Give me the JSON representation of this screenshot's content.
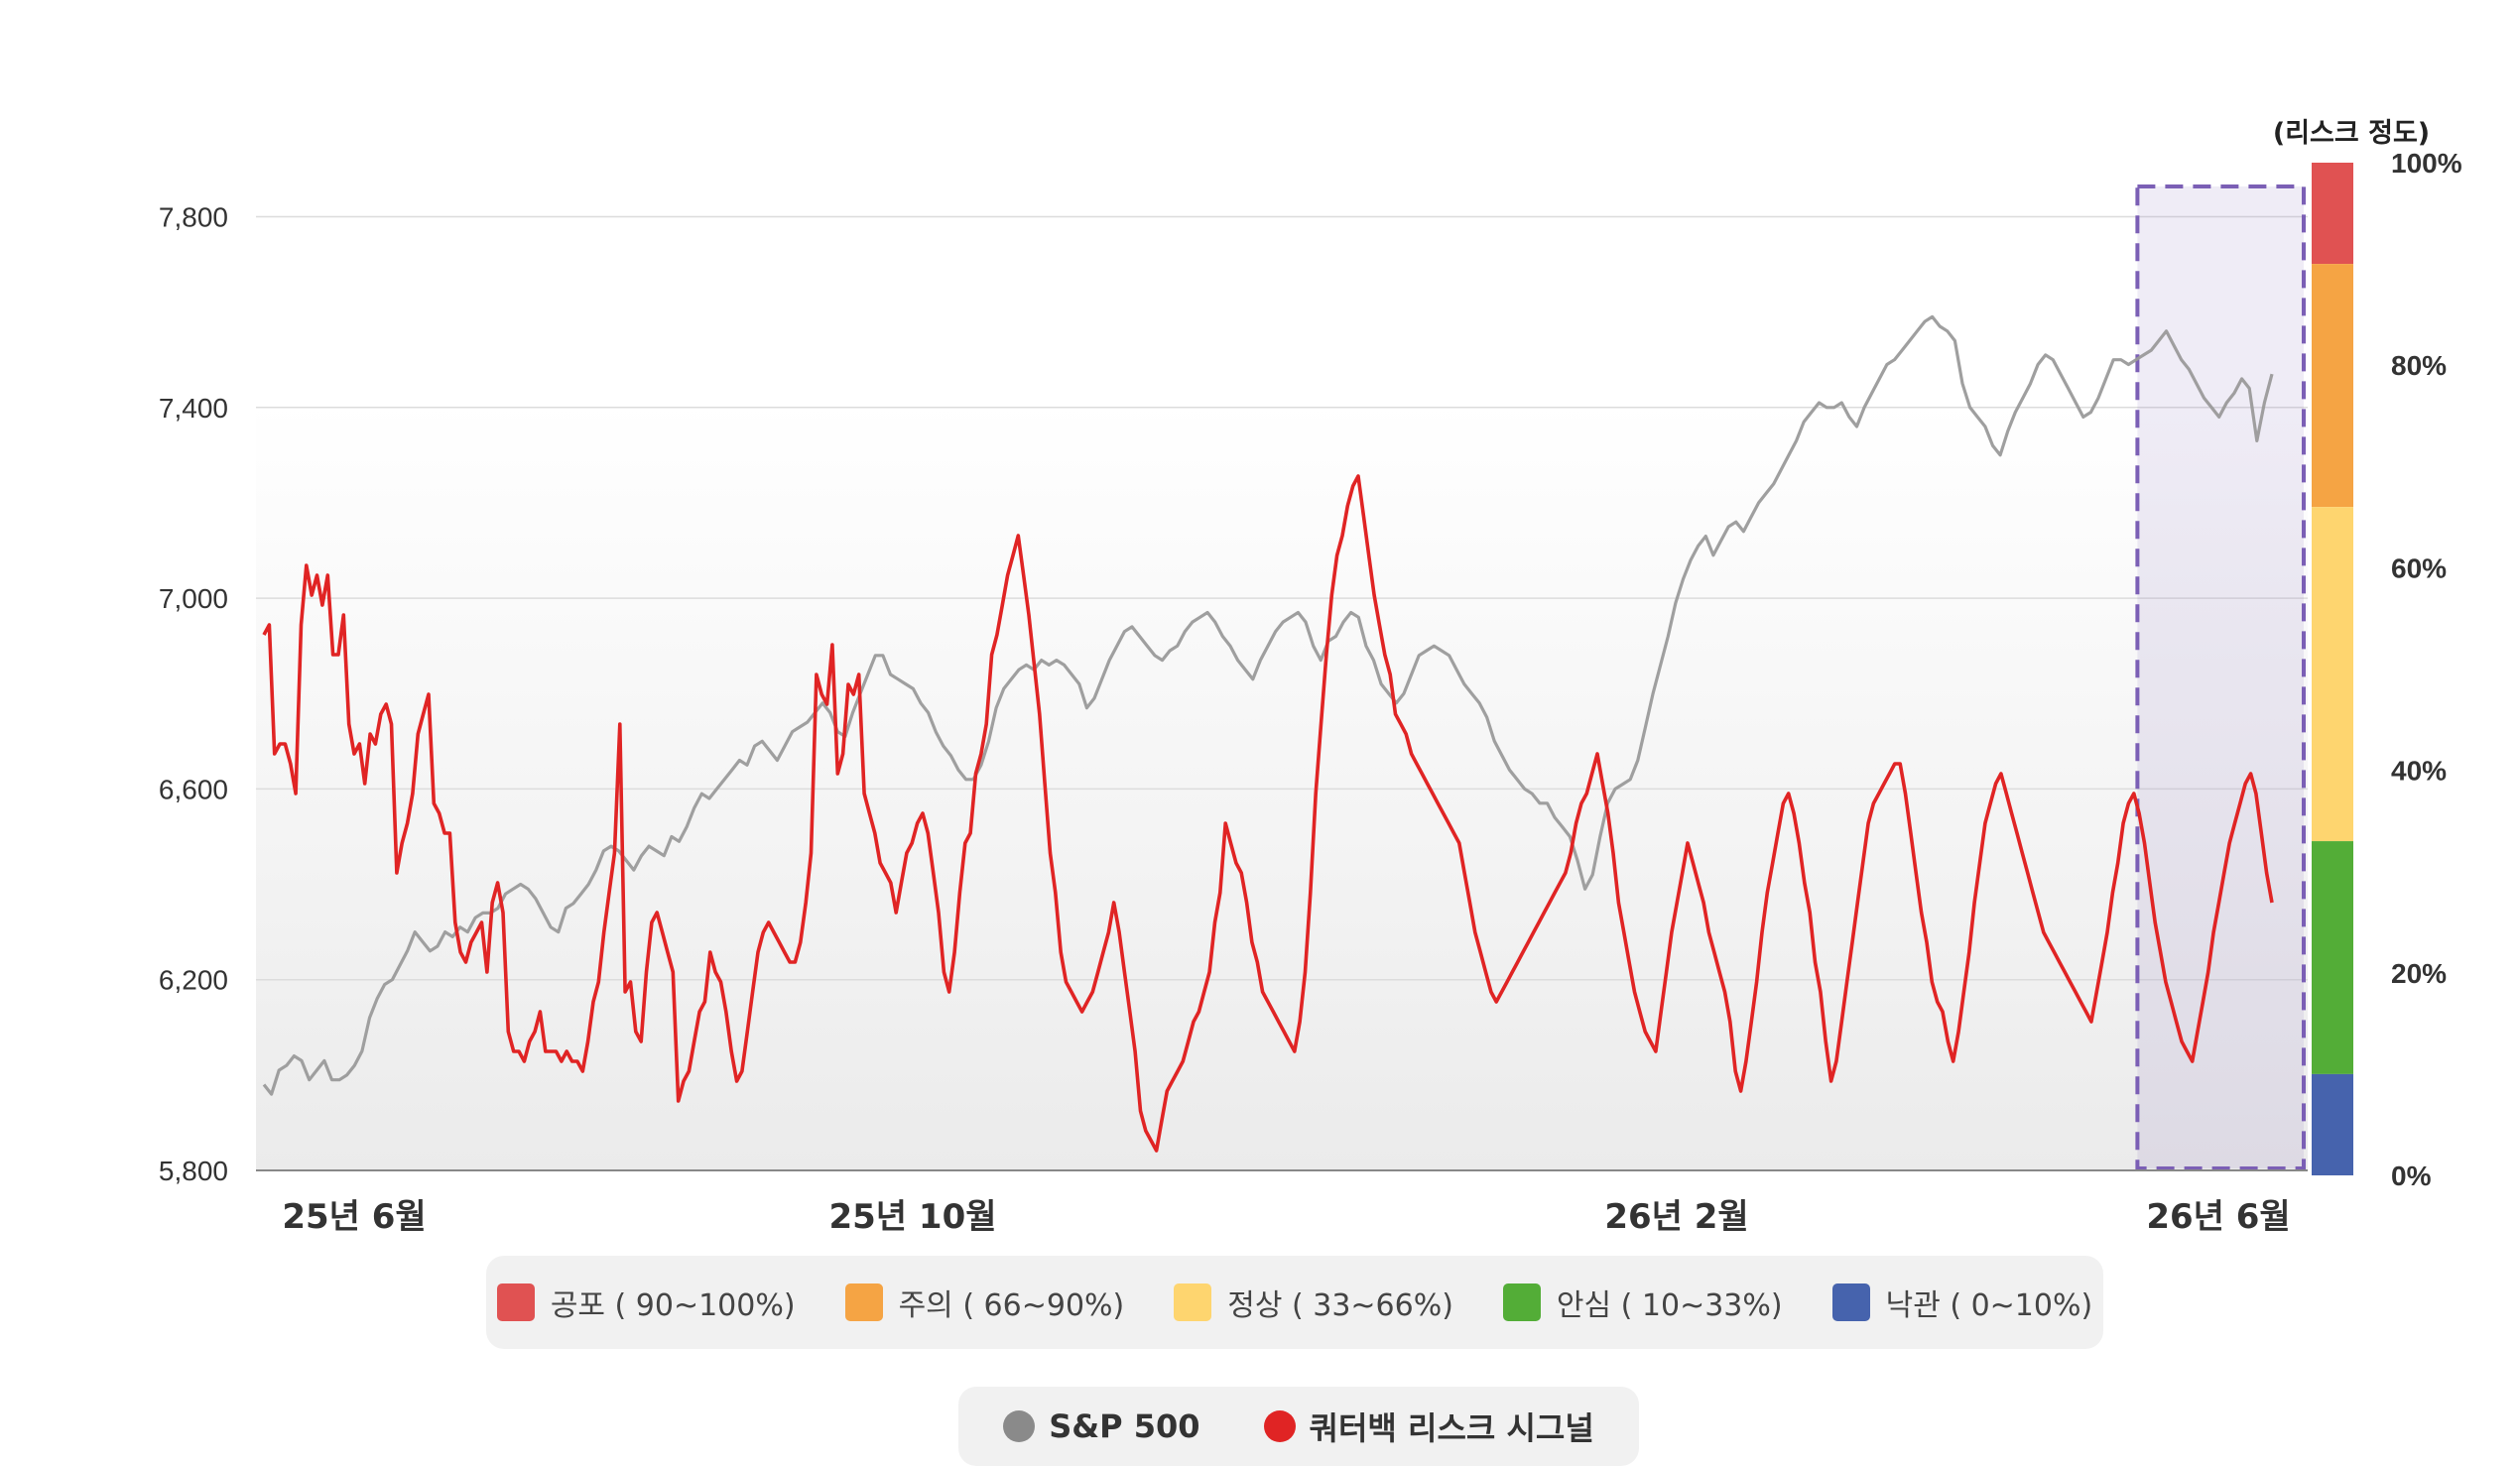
{
  "chart_data": {
    "type": "line",
    "x_ticks": [
      "25년  6월",
      "25년  10월",
      "26년 2월",
      "26년 6월"
    ],
    "y_left": {
      "ticks": [
        "7,800",
        "7,400",
        "7,000",
        "6,600",
        "6,200",
        "5,800"
      ],
      "range": [
        5800,
        7880
      ]
    },
    "y_right": {
      "title": "(리스크 정도)",
      "ticks": [
        "100%",
        "80%",
        "60%",
        "40%",
        "20%",
        "0%"
      ],
      "range": [
        0,
        100
      ]
    },
    "risk_scale": [
      {
        "label": "공포 ( 90~100%)",
        "from": 90,
        "to": 100,
        "color": "#e05252"
      },
      {
        "label": "주의 ( 66~90%)",
        "from": 66,
        "to": 90,
        "color": "#f5a444"
      },
      {
        "label": "정상 ( 33~66%)",
        "from": 33,
        "to": 66,
        "color": "#fed56f"
      },
      {
        "label": "안심 ( 10~33%)",
        "from": 10,
        "to": 33,
        "color": "#53ad37"
      },
      {
        "label": "낙관 ( 0~10%)",
        "from": 0,
        "to": 10,
        "color": "#4663ad"
      }
    ],
    "highlight": {
      "label": "26년 6월 구간",
      "color": "#7b5fb5"
    },
    "series": [
      {
        "name": "S&P 500",
        "color": "#999999",
        "values": [
          5980,
          5960,
          6010,
          6020,
          6040,
          6030,
          5990,
          6010,
          6030,
          5990,
          5990,
          6000,
          6020,
          6050,
          6120,
          6160,
          6190,
          6200,
          6230,
          6260,
          6300,
          6280,
          6260,
          6270,
          6300,
          6290,
          6310,
          6300,
          6330,
          6340,
          6340,
          6350,
          6380,
          6390,
          6400,
          6390,
          6370,
          6340,
          6310,
          6300,
          6350,
          6360,
          6380,
          6400,
          6430,
          6470,
          6480,
          6470,
          6450,
          6430,
          6460,
          6480,
          6470,
          6460,
          6500,
          6490,
          6520,
          6560,
          6590,
          6580,
          6600,
          6620,
          6640,
          6660,
          6650,
          6690,
          6700,
          6680,
          6660,
          6690,
          6720,
          6730,
          6740,
          6760,
          6780,
          6760,
          6720,
          6710,
          6760,
          6800,
          6840,
          6880,
          6880,
          6840,
          6830,
          6820,
          6810,
          6780,
          6760,
          6720,
          6690,
          6670,
          6640,
          6620,
          6620,
          6650,
          6700,
          6770,
          6810,
          6830,
          6850,
          6860,
          6850,
          6870,
          6860,
          6870,
          6860,
          6840,
          6820,
          6770,
          6790,
          6830,
          6870,
          6900,
          6930,
          6940,
          6920,
          6900,
          6880,
          6870,
          6890,
          6900,
          6930,
          6950,
          6960,
          6970,
          6950,
          6920,
          6900,
          6870,
          6850,
          6830,
          6870,
          6900,
          6930,
          6950,
          6960,
          6970,
          6950,
          6900,
          6870,
          6910,
          6920,
          6950,
          6970,
          6960,
          6900,
          6870,
          6820,
          6800,
          6780,
          6800,
          6840,
          6880,
          6890,
          6900,
          6890,
          6880,
          6850,
          6820,
          6800,
          6780,
          6750,
          6700,
          6670,
          6640,
          6620,
          6600,
          6590,
          6570,
          6570,
          6540,
          6520,
          6500,
          6450,
          6390,
          6420,
          6500,
          6570,
          6600,
          6610,
          6620,
          6660,
          6730,
          6800,
          6860,
          6920,
          6990,
          7040,
          7080,
          7110,
          7130,
          7090,
          7120,
          7150,
          7160,
          7140,
          7170,
          7200,
          7220,
          7240,
          7270,
          7300,
          7330,
          7370,
          7390,
          7410,
          7400,
          7400,
          7410,
          7380,
          7360,
          7400,
          7430,
          7460,
          7490,
          7500,
          7520,
          7540,
          7560,
          7580,
          7590,
          7570,
          7560,
          7540,
          7450,
          7400,
          7380,
          7360,
          7320,
          7300,
          7350,
          7390,
          7420,
          7450,
          7490,
          7510,
          7500,
          7470,
          7440,
          7410,
          7380,
          7390,
          7420,
          7460,
          7500,
          7500,
          7490,
          7500,
          7510,
          7520,
          7540,
          7560,
          7530,
          7500,
          7480,
          7450,
          7420,
          7400,
          7380,
          7410,
          7430,
          7460,
          7440,
          7330,
          7410,
          7470
        ]
      },
      {
        "name": "쿼터백 리스크 시그널",
        "color": "#e02424",
        "values": [
          54,
          55,
          42,
          43,
          43,
          41,
          38,
          55,
          61,
          58,
          60,
          57,
          60,
          52,
          52,
          56,
          45,
          42,
          43,
          39,
          44,
          43,
          46,
          47,
          45,
          30,
          33,
          35,
          38,
          44,
          46,
          48,
          37,
          36,
          34,
          34,
          25,
          22,
          21,
          23,
          24,
          25,
          20,
          27,
          29,
          26,
          14,
          12,
          12,
          11,
          13,
          14,
          16,
          12,
          12,
          12,
          11,
          12,
          11,
          11,
          10,
          13,
          17,
          19,
          24,
          28,
          32,
          45,
          18,
          19,
          14,
          13,
          20,
          25,
          26,
          24,
          22,
          20,
          7,
          9,
          10,
          13,
          16,
          17,
          22,
          20,
          19,
          16,
          12,
          9,
          10,
          14,
          18,
          22,
          24,
          25,
          24,
          23,
          22,
          21,
          21,
          23,
          27,
          32,
          50,
          48,
          47,
          53,
          40,
          42,
          49,
          48,
          50,
          38,
          36,
          34,
          31,
          30,
          29,
          26,
          29,
          32,
          33,
          35,
          36,
          34,
          30,
          26,
          20,
          18,
          22,
          28,
          33,
          34,
          40,
          42,
          45,
          52,
          54,
          57,
          60,
          62,
          64,
          60,
          56,
          51,
          46,
          39,
          32,
          28,
          22,
          19,
          18,
          17,
          16,
          17,
          18,
          20,
          22,
          24,
          27,
          24,
          20,
          16,
          12,
          6,
          4,
          3,
          2,
          5,
          8,
          9,
          10,
          11,
          13,
          15,
          16,
          18,
          20,
          25,
          28,
          35,
          33,
          31,
          30,
          27,
          23,
          21,
          18,
          17,
          16,
          15,
          14,
          13,
          12,
          15,
          20,
          28,
          38,
          45,
          52,
          58,
          62,
          64,
          67,
          69,
          70,
          66,
          62,
          58,
          55,
          52,
          50,
          46,
          45,
          44,
          42,
          41,
          40,
          39,
          38,
          37,
          36,
          35,
          34,
          33,
          30,
          27,
          24,
          22,
          20,
          18,
          17,
          18,
          19,
          20,
          21,
          22,
          23,
          24,
          25,
          26,
          27,
          28,
          29,
          30,
          32,
          35,
          37,
          38,
          40,
          42,
          39,
          36,
          32,
          27,
          24,
          21,
          18,
          16,
          14,
          13,
          12,
          16,
          20,
          24,
          27,
          30,
          33,
          31,
          29,
          27,
          24,
          22,
          20,
          18,
          15,
          10,
          8,
          11,
          15,
          19,
          24,
          28,
          31,
          34,
          37,
          38,
          36,
          33,
          29,
          26,
          21,
          18,
          13,
          9,
          11,
          15,
          19,
          23,
          27,
          31,
          35,
          37,
          38,
          39,
          40,
          41,
          41,
          38,
          34,
          30,
          26,
          23,
          19,
          17,
          16,
          13,
          11,
          14,
          18,
          22,
          27,
          31,
          35,
          37,
          39,
          40,
          38,
          36,
          34,
          32,
          30,
          28,
          26,
          24,
          23,
          22,
          21,
          20,
          19,
          18,
          17,
          16,
          15,
          18,
          21,
          24,
          28,
          31,
          35,
          37,
          38,
          36,
          33,
          29,
          25,
          22,
          19,
          17,
          15,
          13,
          12,
          11,
          14,
          17,
          20,
          24,
          27,
          30,
          33,
          35,
          37,
          39,
          40,
          38,
          34,
          30,
          27
        ]
      }
    ]
  },
  "legend": {
    "risk_items": [
      {
        "label": "공포 ( 90~100%)",
        "color": "#e05252"
      },
      {
        "label": "주의 ( 66~90%)",
        "color": "#f5a444"
      },
      {
        "label": "정상 ( 33~66%)",
        "color": "#fed56f"
      },
      {
        "label": "안심 ( 10~33%)",
        "color": "#53ad37"
      },
      {
        "label": "낙관 ( 0~10%)",
        "color": "#4663ad"
      }
    ],
    "series_items": [
      {
        "label": "S&P 500",
        "color": "#8a8a8a"
      },
      {
        "label": "쿼터백 리스크 시그널",
        "color": "#e02424"
      }
    ]
  }
}
